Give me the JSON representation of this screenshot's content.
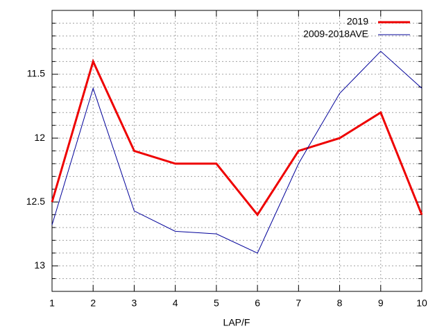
{
  "chart_data": {
    "type": "line",
    "x_label": "LAP/F",
    "x": [
      1,
      2,
      3,
      4,
      5,
      6,
      7,
      8,
      9,
      10
    ],
    "series": [
      {
        "name": "2019",
        "color": "#ee0000",
        "width": 3,
        "values": [
          12.5,
          11.4,
          12.1,
          12.2,
          12.2,
          12.6,
          12.1,
          12.0,
          11.8,
          12.6
        ]
      },
      {
        "name": "2009-2018AVE",
        "color": "#000099",
        "width": 1,
        "values": [
          12.68,
          11.61,
          12.57,
          12.73,
          12.75,
          12.9,
          12.2,
          11.65,
          11.32,
          11.61
        ]
      }
    ],
    "xlim": [
      1,
      10
    ],
    "xticks": [
      1,
      2,
      3,
      4,
      5,
      6,
      7,
      8,
      9,
      10
    ],
    "ylim": [
      11,
      13.2
    ],
    "y_reversed": true,
    "yticks": [
      11.5,
      12,
      12.5,
      13
    ],
    "yminorticks": [
      11.1,
      11.2,
      11.3,
      11.4,
      11.6,
      11.7,
      11.8,
      11.9,
      12.1,
      12.2,
      12.3,
      12.4,
      12.6,
      12.7,
      12.8,
      12.9,
      13.1
    ],
    "grid": true,
    "legend": "top-right"
  }
}
